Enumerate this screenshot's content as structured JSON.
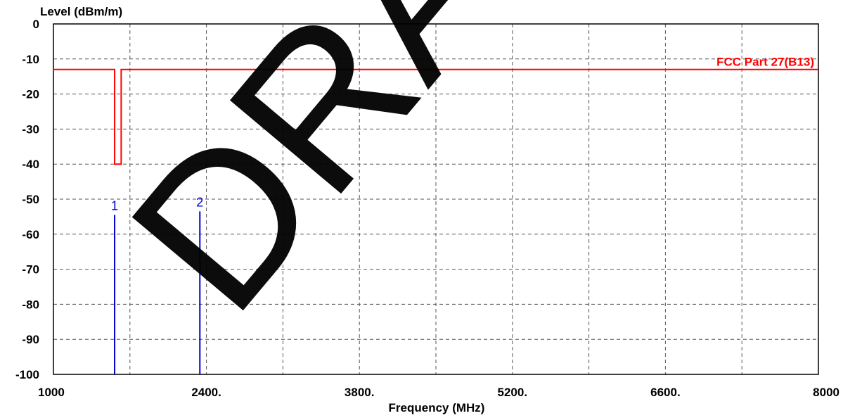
{
  "chart_data": {
    "type": "line",
    "xlabel": "Frequency (MHz)",
    "ylabel": "Level (dBm/m)",
    "xlim": [
      1000,
      8000
    ],
    "ylim": [
      -100,
      0
    ],
    "x_ticks": [
      {
        "value": 1000,
        "label": "1000"
      },
      {
        "value": 2400,
        "label": "2400."
      },
      {
        "value": 3800,
        "label": "3800."
      },
      {
        "value": 5200,
        "label": "5200."
      },
      {
        "value": 6600,
        "label": "6600."
      },
      {
        "value": 8000,
        "label": "8000"
      }
    ],
    "x_grid_step": 700,
    "y_ticks": [
      0,
      -10,
      -20,
      -30,
      -40,
      -50,
      -60,
      -70,
      -80,
      -90,
      -100
    ],
    "grid": true,
    "limit_line": {
      "name": "FCC Part 27(B13)",
      "color": "#ff0000",
      "x": [
        1000,
        1560,
        1560,
        1620,
        1620,
        8000
      ],
      "y": [
        -13,
        -13,
        -40,
        -40,
        -13,
        -13
      ]
    },
    "markers": [
      {
        "label": "1",
        "x": 1560,
        "y": -54.5,
        "color": "#0000cc"
      },
      {
        "label": "2",
        "x": 2340,
        "y": -53.5,
        "color": "#0000cc"
      }
    ],
    "watermark": "DRAFT"
  }
}
